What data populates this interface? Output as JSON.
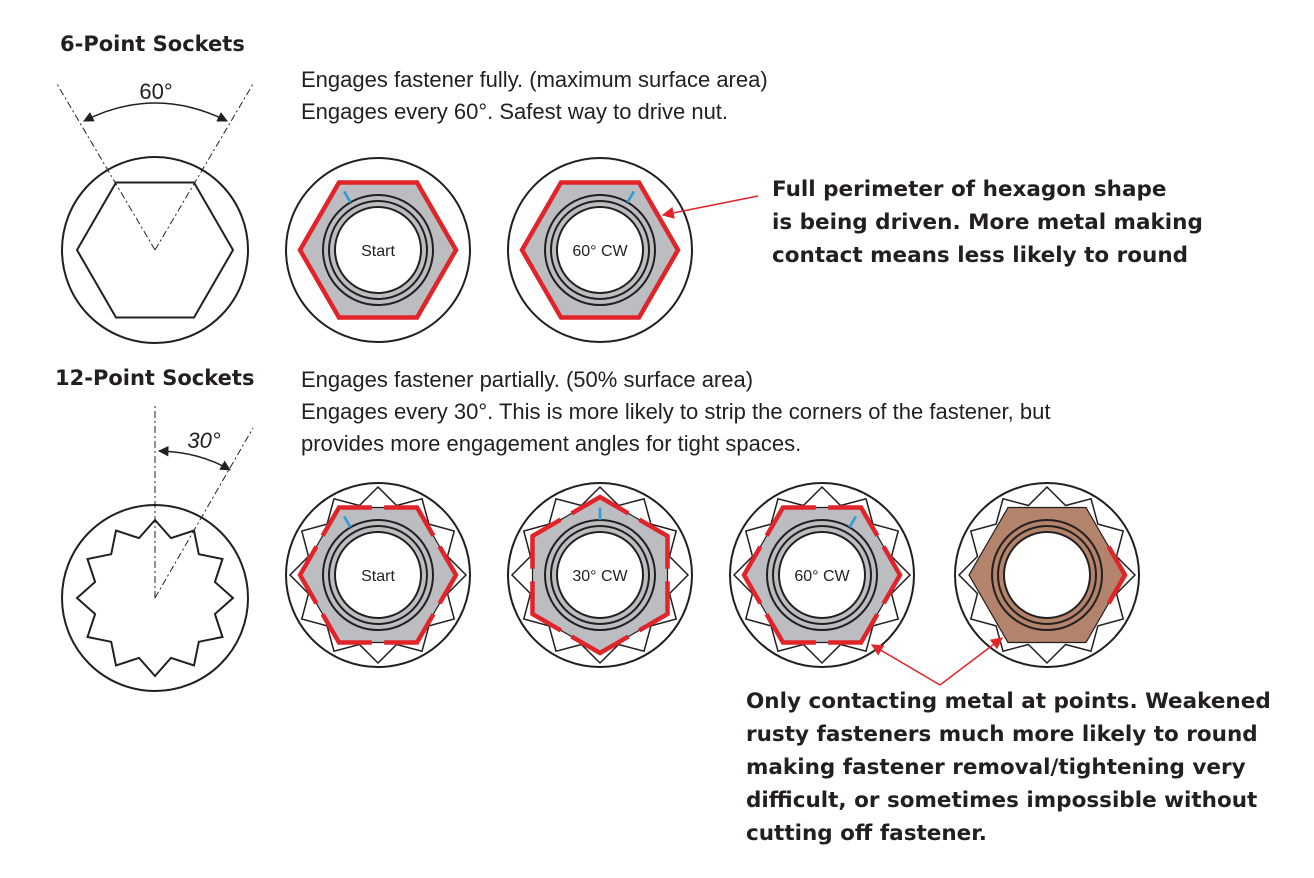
{
  "six_point": {
    "heading": "6-Point Sockets",
    "angle_label": "60°",
    "description": [
      "Engages fastener fully. (maximum surface area)",
      "Engages every 60°. Safest way to drive nut."
    ],
    "states": [
      "Start",
      "60° CW"
    ],
    "callout": [
      "Full perimeter of hexagon shape",
      "is being driven. More metal making",
      "contact means less likely to round"
    ]
  },
  "twelve_point": {
    "heading": "12-Point Sockets",
    "angle_label": "30°",
    "description": [
      "Engages fastener partially. (50% surface area)",
      "Engages every 30°. This is more likely to strip the corners of the fastener, but",
      "provides more engagement angles for tight spaces."
    ],
    "states": [
      "Start",
      "30° CW",
      "60° CW"
    ],
    "callout": [
      "Only contacting metal at points. Weakened",
      "rusty fasteners much more likely to round",
      "making fastener removal/tightening very",
      "difficult, or sometimes impossible without",
      "cutting off fastener."
    ]
  },
  "colors": {
    "text": "#231f20",
    "callout_green": "#00826a",
    "contact_red": "#e1232a",
    "nut_gray": "#bcbdc0",
    "rust": "#b3836b",
    "rotation_marker_blue": "#2b9bd6"
  },
  "icons": {
    "angle_arc": "curved-double-arrow",
    "callout_arrow": "red-leader-arrow"
  }
}
